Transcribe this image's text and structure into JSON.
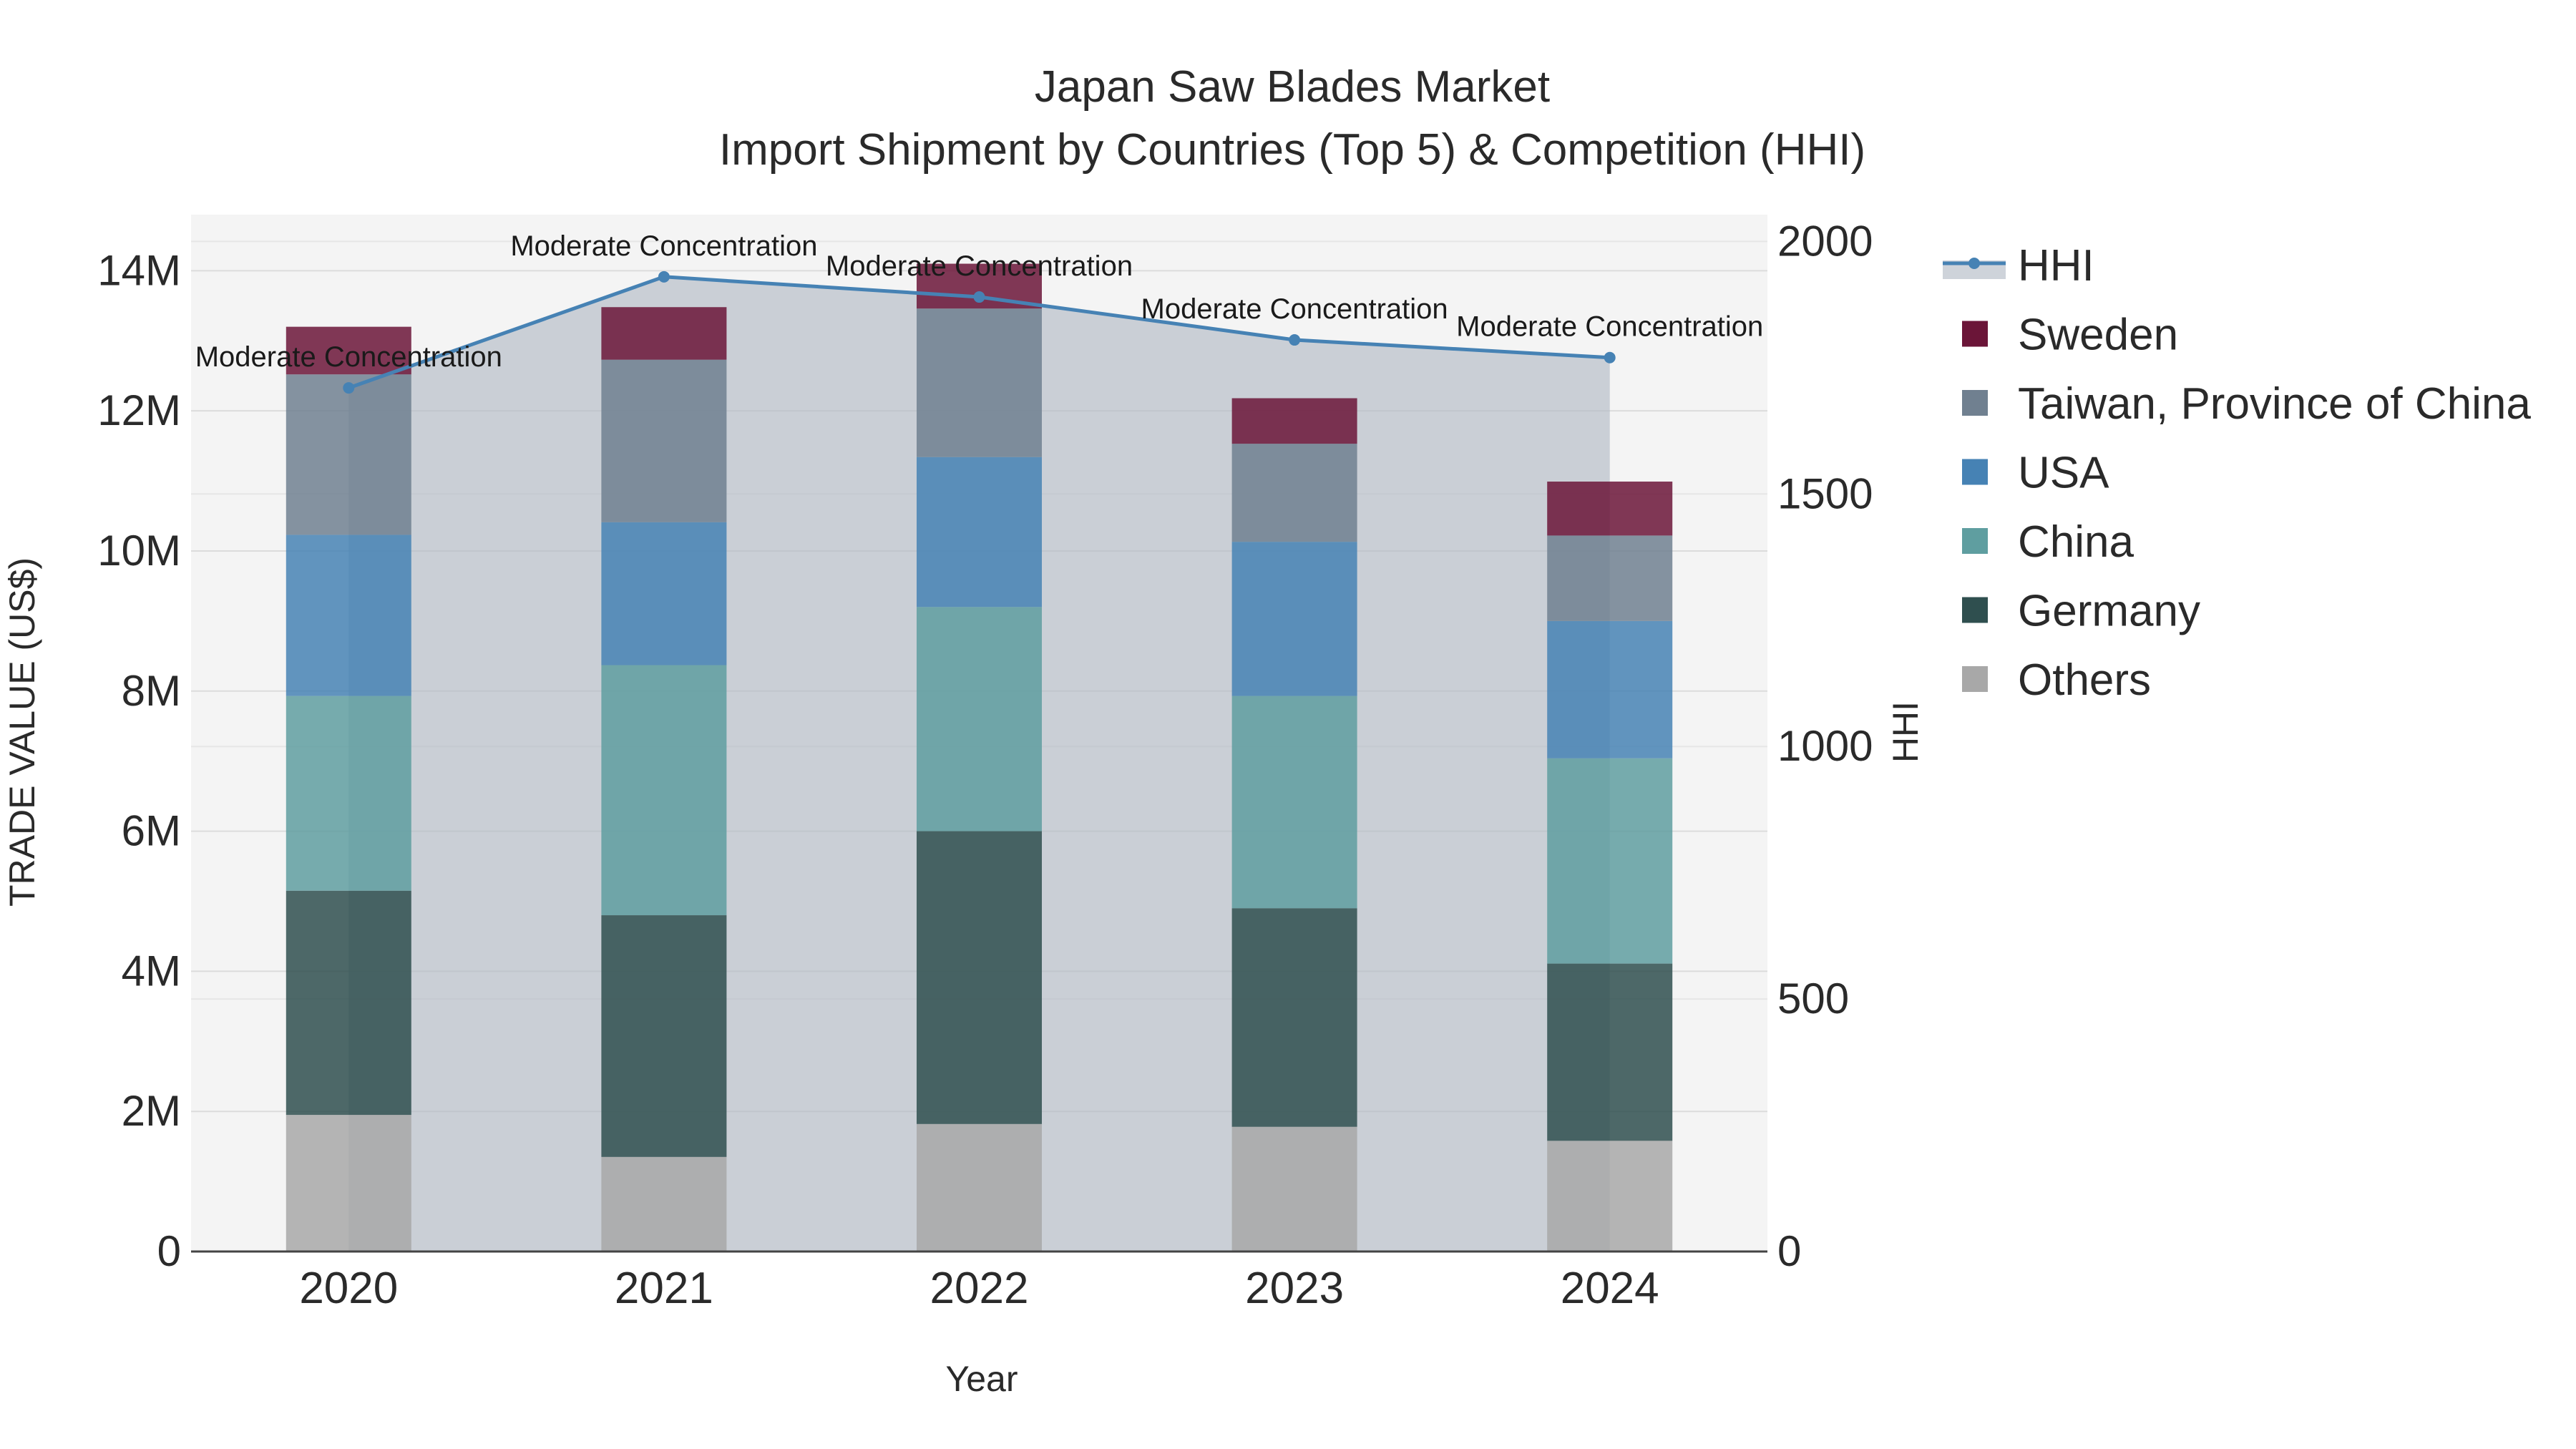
{
  "chart_data": {
    "type": "bar",
    "title": "Japan Saw Blades Market",
    "subtitle": "Import Shipment by Countries (Top 5) & Competition (HHI)",
    "xlabel": "Year",
    "ylabel": "TRADE VALUE (US$)",
    "y2label": "HHI",
    "categories": [
      "2020",
      "2021",
      "2022",
      "2023",
      "2024"
    ],
    "ylim": [
      0,
      14800000
    ],
    "y2lim": [
      0,
      2053
    ],
    "yticks": [
      {
        "value": 0,
        "label": "0"
      },
      {
        "value": 2000000,
        "label": "2M"
      },
      {
        "value": 4000000,
        "label": "4M"
      },
      {
        "value": 6000000,
        "label": "6M"
      },
      {
        "value": 8000000,
        "label": "8M"
      },
      {
        "value": 10000000,
        "label": "10M"
      },
      {
        "value": 12000000,
        "label": "12M"
      },
      {
        "value": 14000000,
        "label": "14M"
      }
    ],
    "y2ticks": [
      {
        "value": 0,
        "label": "0"
      },
      {
        "value": 500,
        "label": "500"
      },
      {
        "value": 1000,
        "label": "1000"
      },
      {
        "value": 1500,
        "label": "1500"
      },
      {
        "value": 2000,
        "label": "2000"
      }
    ],
    "series": [
      {
        "name": "Others",
        "color": "#a8a8a8",
        "values": [
          1950000,
          1350000,
          1820000,
          1780000,
          1580000
        ]
      },
      {
        "name": "Germany",
        "color": "#2f4f4f",
        "values": [
          3200000,
          3450000,
          4180000,
          3120000,
          2530000
        ]
      },
      {
        "name": "China",
        "color": "#5f9ea0",
        "values": [
          2780000,
          3570000,
          3200000,
          3030000,
          2930000
        ]
      },
      {
        "name": "USA",
        "color": "#4682b4",
        "values": [
          2300000,
          2040000,
          2140000,
          2200000,
          1960000
        ]
      },
      {
        "name": "Taiwan, Province of China",
        "color": "#708090",
        "values": [
          2290000,
          2320000,
          2120000,
          1400000,
          1220000
        ]
      },
      {
        "name": "Sweden",
        "color": "#6b1538",
        "values": [
          680000,
          750000,
          640000,
          650000,
          770000
        ]
      }
    ],
    "hhi": {
      "name": "HHI",
      "color": "#4682b4",
      "values": [
        1710,
        1930,
        1890,
        1805,
        1770
      ],
      "annotations": [
        "Moderate Concentration",
        "Moderate Concentration",
        "Moderate Concentration",
        "Moderate Concentration",
        "Moderate Concentration"
      ]
    },
    "legend": {
      "placement": "right",
      "order": [
        "HHI",
        "Sweden",
        "Taiwan, Province of China",
        "USA",
        "China",
        "Germany",
        "Others"
      ]
    },
    "grid": true,
    "plot_background": "#f4f4f4"
  }
}
